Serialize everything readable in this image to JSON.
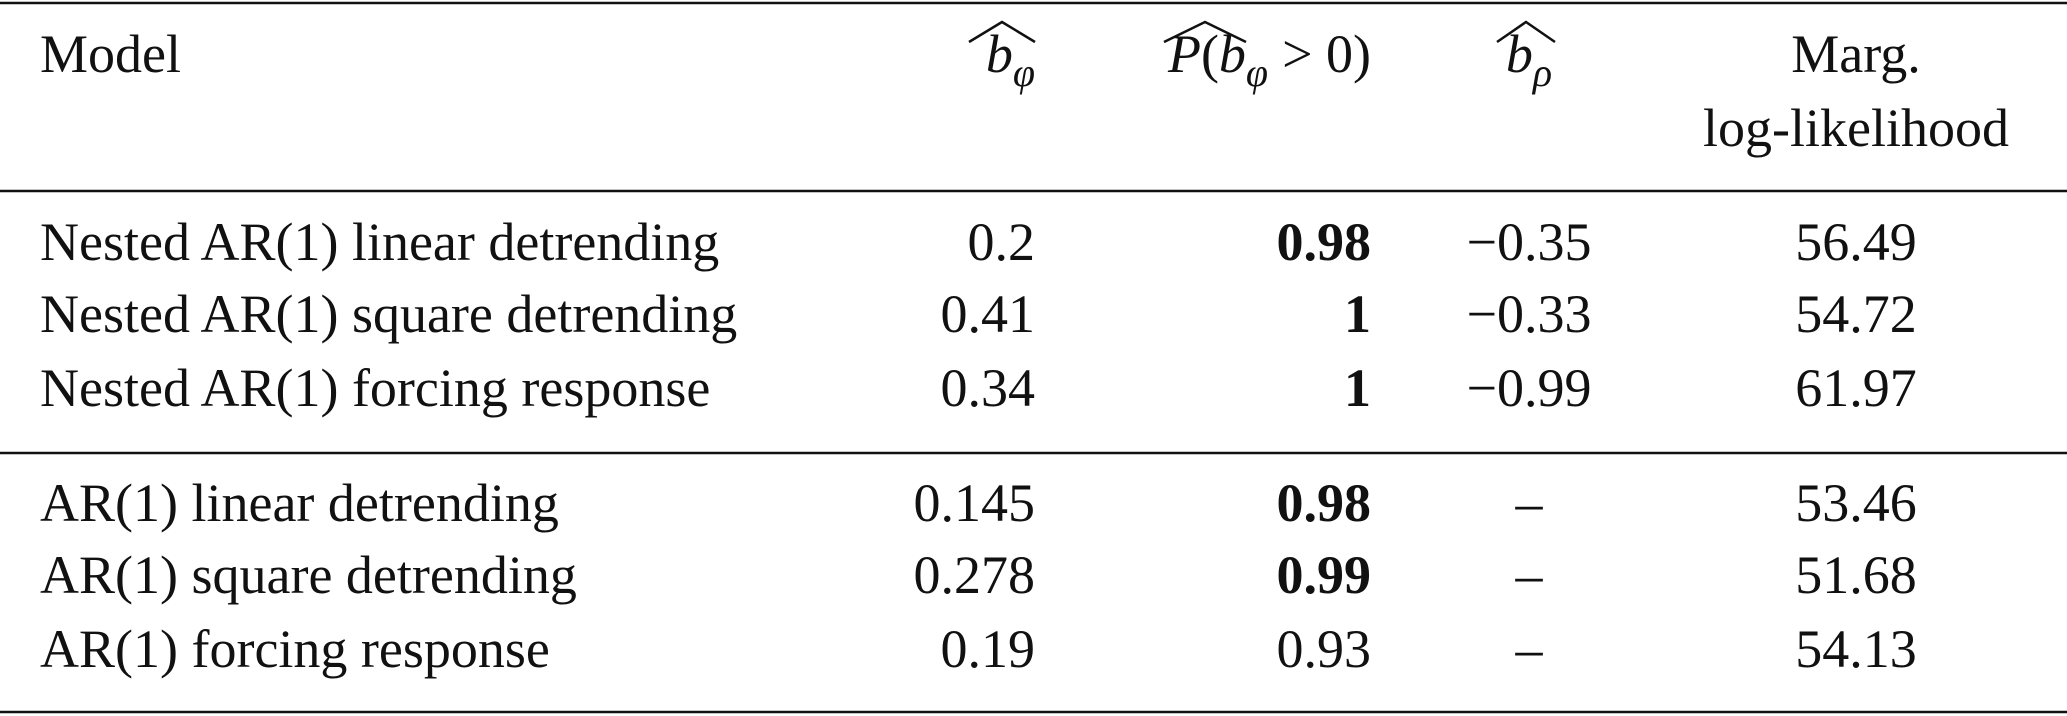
{
  "header": {
    "model": "Model",
    "b_phi": {
      "base": "b",
      "sub": "φ"
    },
    "p_b_phi": {
      "func": "P",
      "open": "(",
      "base": "b",
      "sub": "φ",
      "close": "> 0)"
    },
    "b_rho": {
      "base": "b",
      "sub": "ρ"
    },
    "marg_ll": [
      "Marg.",
      "log-likelihood"
    ]
  },
  "table": {
    "rows": [
      [
        "Nested AR(1) linear detrending",
        "0.2",
        "0.98",
        "−0.35",
        "56.49"
      ],
      [
        "Nested AR(1) square detrending",
        "0.41",
        "1",
        "−0.33",
        "54.72"
      ],
      [
        "Nested AR(1) forcing response",
        "0.34",
        "1",
        "−0.99",
        "61.97"
      ],
      [
        "AR(1) linear detrending",
        "0.145",
        "0.98",
        "–",
        "53.46"
      ],
      [
        "AR(1) square detrending",
        "0.278",
        "0.99",
        "–",
        "51.68"
      ],
      [
        "AR(1) forcing response",
        "0.19",
        "0.93",
        "–",
        "54.13"
      ]
    ]
  }
}
